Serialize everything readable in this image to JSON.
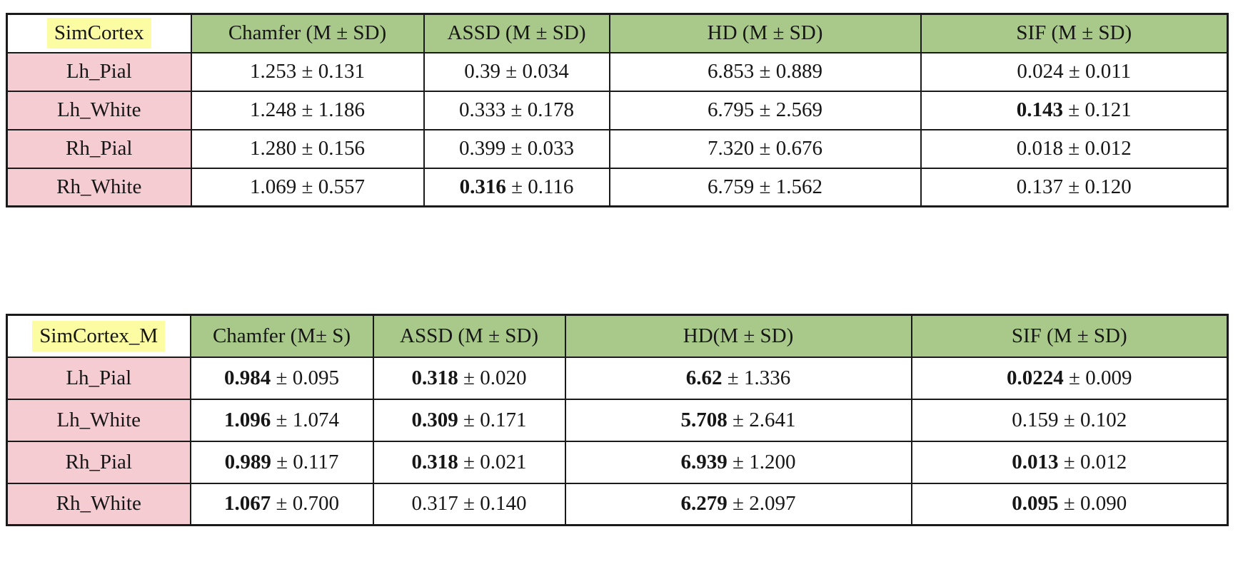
{
  "colors": {
    "page_background": "#ffffff",
    "header_green": "#a9c98b",
    "row_label_pink": "#f6ccd3",
    "title_highlight_yellow": "#fcfca3",
    "border": "#1a1a1a",
    "text": "#161616"
  },
  "chart_data": [
    {
      "type": "table",
      "title": "SimCortex",
      "columns": [
        "Chamfer (M ± SD)",
        "ASSD (M ± SD)",
        "HD (M ± SD)",
        "SIF (M ± SD)"
      ],
      "row_labels": [
        "Lh_Pial",
        "Lh_White",
        "Rh_Pial",
        "Rh_White"
      ],
      "cells": [
        [
          {
            "mean": "1.253",
            "sd": "0.131",
            "bold_mean": false
          },
          {
            "mean": "0.39",
            "sd": "0.034",
            "bold_mean": false
          },
          {
            "mean": "6.853",
            "sd": "0.889",
            "bold_mean": false
          },
          {
            "mean": "0.024",
            "sd": "0.011",
            "bold_mean": false
          }
        ],
        [
          {
            "mean": "1.248",
            "sd": "1.186",
            "bold_mean": false
          },
          {
            "mean": "0.333",
            "sd": "0.178",
            "bold_mean": false
          },
          {
            "mean": "6.795",
            "sd": "2.569",
            "bold_mean": false
          },
          {
            "mean": "0.143",
            "sd": "0.121",
            "bold_mean": true
          }
        ],
        [
          {
            "mean": "1.280",
            "sd": "0.156",
            "bold_mean": false
          },
          {
            "mean": "0.399",
            "sd": "0.033",
            "bold_mean": false
          },
          {
            "mean": "7.320",
            "sd": "0.676",
            "bold_mean": false
          },
          {
            "mean": "0.018",
            "sd": "0.012",
            "bold_mean": false
          }
        ],
        [
          {
            "mean": "1.069",
            "sd": "0.557",
            "bold_mean": false
          },
          {
            "mean": "0.316",
            "sd": "0.116",
            "bold_mean": true
          },
          {
            "mean": "6.759",
            "sd": "1.562",
            "bold_mean": false
          },
          {
            "mean": "0.137",
            "sd": "0.120",
            "bold_mean": false
          }
        ]
      ]
    },
    {
      "type": "table",
      "title": "SimCortex_M",
      "columns": [
        "Chamfer (M± S)",
        "ASSD (M ± SD)",
        "HD(M ± SD)",
        "SIF (M ± SD)"
      ],
      "row_labels": [
        "Lh_Pial",
        "Lh_White",
        "Rh_Pial",
        "Rh_White"
      ],
      "cells": [
        [
          {
            "mean": "0.984",
            "sd": "0.095",
            "bold_mean": true
          },
          {
            "mean": "0.318",
            "sd": "0.020",
            "bold_mean": true
          },
          {
            "mean": "6.62",
            "sd": "1.336",
            "bold_mean": true
          },
          {
            "mean": "0.0224",
            "sd": "0.009",
            "bold_mean": true
          }
        ],
        [
          {
            "mean": "1.096",
            "sd": "1.074",
            "bold_mean": true
          },
          {
            "mean": "0.309",
            "sd": "0.171",
            "bold_mean": true
          },
          {
            "mean": "5.708",
            "sd": "2.641",
            "bold_mean": true
          },
          {
            "mean": "0.159",
            "sd": "0.102",
            "bold_mean": false
          }
        ],
        [
          {
            "mean": "0.989",
            "sd": "0.117",
            "bold_mean": true
          },
          {
            "mean": "0.318",
            "sd": "0.021",
            "bold_mean": true
          },
          {
            "mean": "6.939",
            "sd": "1.200",
            "bold_mean": true
          },
          {
            "mean": "0.013",
            "sd": "0.012",
            "bold_mean": true
          }
        ],
        [
          {
            "mean": "1.067",
            "sd": "0.700",
            "bold_mean": true
          },
          {
            "mean": "0.317",
            "sd": "0.140",
            "bold_mean": false
          },
          {
            "mean": "6.279",
            "sd": "2.097",
            "bold_mean": true
          },
          {
            "mean": "0.095",
            "sd": "0.090",
            "bold_mean": true
          }
        ]
      ]
    }
  ]
}
